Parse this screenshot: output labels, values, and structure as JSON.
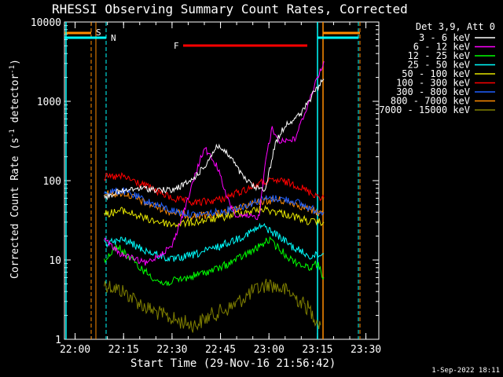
{
  "chart_data": {
    "type": "line",
    "title": "RHESSI Observing Summary Count Rates, Corrected",
    "xlabel": "Start Time (29-Nov-16 21:56:42)",
    "ylabel_main": "Corrected Count Rate (s",
    "ylabel_sup1": "-1",
    "ylabel_mid": " detector",
    "ylabel_sup2": "-1",
    "ylabel_end": ")",
    "y_scale": "log",
    "ylim": [
      1,
      10000
    ],
    "x_range": [
      "21:56:42",
      "23:34:00"
    ],
    "x_ticks": [
      "22:00",
      "22:15",
      "22:30",
      "22:45",
      "23:00",
      "23:15",
      "23:30"
    ],
    "y_ticks": [
      "1",
      "10",
      "100",
      "1000",
      "10000"
    ],
    "legend_header": "Det 3,9, Att 0",
    "legend_position": "right",
    "series": [
      {
        "name": "3 - 6 keV",
        "color": "#ffffff",
        "points": [
          [
            "22:09",
            60
          ],
          [
            "22:12",
            70
          ],
          [
            "22:20",
            80
          ],
          [
            "22:30",
            75
          ],
          [
            "22:36",
            100
          ],
          [
            "22:40",
            150
          ],
          [
            "22:44",
            280
          ],
          [
            "22:48",
            200
          ],
          [
            "22:52",
            110
          ],
          [
            "22:56",
            80
          ],
          [
            "22:59",
            80
          ],
          [
            "23:02",
            300
          ],
          [
            "23:05",
            500
          ],
          [
            "23:10",
            700
          ],
          [
            "23:14",
            1300
          ],
          [
            "23:17",
            1900
          ]
        ]
      },
      {
        "name": "6 - 12 keV",
        "color": "#ff00ff",
        "points": [
          [
            "22:09",
            18
          ],
          [
            "22:14",
            12
          ],
          [
            "22:22",
            9
          ],
          [
            "22:30",
            15
          ],
          [
            "22:35",
            60
          ],
          [
            "22:38",
            150
          ],
          [
            "22:40",
            260
          ],
          [
            "22:44",
            150
          ],
          [
            "22:47",
            60
          ],
          [
            "22:50",
            35
          ],
          [
            "22:57",
            35
          ],
          [
            "22:59",
            200
          ],
          [
            "23:01",
            450
          ],
          [
            "23:03",
            320
          ],
          [
            "23:08",
            330
          ],
          [
            "23:12",
            900
          ],
          [
            "23:15",
            2000
          ],
          [
            "23:17",
            3200
          ]
        ]
      },
      {
        "name": "12 - 25 keV",
        "color": "#00ff00",
        "points": [
          [
            "22:09",
            10
          ],
          [
            "22:13",
            15
          ],
          [
            "22:20",
            8
          ],
          [
            "22:27",
            5
          ],
          [
            "22:35",
            6
          ],
          [
            "22:45",
            8
          ],
          [
            "22:55",
            13
          ],
          [
            "23:00",
            18
          ],
          [
            "23:07",
            10
          ],
          [
            "23:12",
            8
          ],
          [
            "23:15",
            9
          ],
          [
            "23:17",
            6
          ]
        ]
      },
      {
        "name": "25 - 50 keV",
        "color": "#00ffff",
        "points": [
          [
            "22:09",
            16
          ],
          [
            "22:15",
            18
          ],
          [
            "22:22",
            13
          ],
          [
            "22:30",
            10
          ],
          [
            "22:38",
            12
          ],
          [
            "22:45",
            15
          ],
          [
            "22:52",
            20
          ],
          [
            "22:58",
            27
          ],
          [
            "23:03",
            20
          ],
          [
            "23:08",
            14
          ],
          [
            "23:13",
            11
          ],
          [
            "23:17",
            12
          ]
        ]
      },
      {
        "name": "50 - 100 keV",
        "color": "#e6e600",
        "points": [
          [
            "22:09",
            38
          ],
          [
            "22:15",
            42
          ],
          [
            "22:22",
            33
          ],
          [
            "22:30",
            28
          ],
          [
            "22:37",
            30
          ],
          [
            "22:45",
            34
          ],
          [
            "22:52",
            40
          ],
          [
            "22:58",
            44
          ],
          [
            "23:03",
            40
          ],
          [
            "23:08",
            35
          ],
          [
            "23:13",
            30
          ],
          [
            "23:17",
            30
          ]
        ]
      },
      {
        "name": "100 - 300 keV",
        "color": "#ff0000",
        "points": [
          [
            "22:09",
            110
          ],
          [
            "22:15",
            112
          ],
          [
            "22:22",
            85
          ],
          [
            "22:30",
            60
          ],
          [
            "22:37",
            52
          ],
          [
            "22:45",
            58
          ],
          [
            "22:52",
            75
          ],
          [
            "22:58",
            95
          ],
          [
            "23:03",
            100
          ],
          [
            "23:08",
            90
          ],
          [
            "23:13",
            70
          ],
          [
            "23:17",
            60
          ]
        ]
      },
      {
        "name": "300 - 800 keV",
        "color": "#2060ff",
        "points": [
          [
            "22:09",
            72
          ],
          [
            "22:15",
            74
          ],
          [
            "22:22",
            55
          ],
          [
            "22:30",
            42
          ],
          [
            "22:37",
            37
          ],
          [
            "22:45",
            40
          ],
          [
            "22:52",
            48
          ],
          [
            "22:58",
            58
          ],
          [
            "23:03",
            60
          ],
          [
            "23:08",
            55
          ],
          [
            "23:13",
            44
          ],
          [
            "23:17",
            40
          ]
        ]
      },
      {
        "name": "800 - 7000 keV",
        "color": "#ff8c00",
        "points": [
          [
            "22:09",
            68
          ],
          [
            "22:15",
            70
          ],
          [
            "22:22",
            52
          ],
          [
            "22:30",
            40
          ],
          [
            "22:37",
            36
          ],
          [
            "22:45",
            38
          ],
          [
            "22:52",
            46
          ],
          [
            "22:58",
            55
          ],
          [
            "23:03",
            57
          ],
          [
            "23:08",
            52
          ],
          [
            "23:13",
            42
          ],
          [
            "23:17",
            38
          ]
        ]
      },
      {
        "name": "7000 - 15000 keV",
        "color": "#808000",
        "points": [
          [
            "22:09",
            5
          ],
          [
            "22:15",
            4
          ],
          [
            "22:22",
            2.5
          ],
          [
            "22:30",
            1.8
          ],
          [
            "22:37",
            1.5
          ],
          [
            "22:42",
            2
          ],
          [
            "22:48",
            2.5
          ],
          [
            "22:55",
            4
          ],
          [
            "23:00",
            5
          ],
          [
            "23:06",
            4
          ],
          [
            "23:12",
            2.5
          ],
          [
            "23:16",
            1.5
          ]
        ]
      }
    ],
    "annotations": [
      {
        "label": "S",
        "color": "#ff8c00"
      },
      {
        "label": "N",
        "color": "#00ffff"
      },
      {
        "label": "F",
        "color": "#ff0000"
      }
    ],
    "footer_date": "1-Sep-2022 18:11"
  }
}
